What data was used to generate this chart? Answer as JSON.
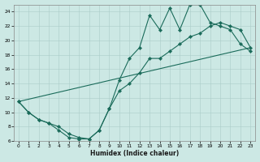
{
  "xlabel": "Humidex (Indice chaleur)",
  "xlim": [
    -0.5,
    23.5
  ],
  "ylim": [
    6,
    25
  ],
  "xticks": [
    0,
    1,
    2,
    3,
    4,
    5,
    6,
    7,
    8,
    9,
    10,
    11,
    12,
    13,
    14,
    15,
    16,
    17,
    18,
    19,
    20,
    21,
    22,
    23
  ],
  "yticks": [
    6,
    8,
    10,
    12,
    14,
    16,
    18,
    20,
    22,
    24
  ],
  "bg_color": "#cce8e4",
  "line_color": "#1a6b5a",
  "grid_color": "#aaccc8",
  "line1_x": [
    0,
    1,
    2,
    3,
    4,
    5,
    6,
    7,
    8,
    9,
    10,
    11,
    12,
    13,
    14,
    15,
    16,
    17,
    18,
    19,
    20,
    21,
    22,
    23
  ],
  "line1_y": [
    11.5,
    10.0,
    9.0,
    8.5,
    7.5,
    6.5,
    6.3,
    6.3,
    7.5,
    10.5,
    14.5,
    17.5,
    19.0,
    23.5,
    21.5,
    24.5,
    21.5,
    25.0,
    25.0,
    22.5,
    22.0,
    21.5,
    19.5,
    18.5
  ],
  "line2_x": [
    0,
    1,
    2,
    3,
    4,
    5,
    6,
    7,
    8,
    9,
    10,
    11,
    12,
    13,
    14,
    15,
    16,
    17,
    18,
    19,
    20,
    21,
    22,
    23
  ],
  "line2_y": [
    11.5,
    10.0,
    9.0,
    8.5,
    8.0,
    7.0,
    6.5,
    6.3,
    7.5,
    10.5,
    13.0,
    14.0,
    15.5,
    17.5,
    17.5,
    18.5,
    19.5,
    20.5,
    21.0,
    22.0,
    22.5,
    22.0,
    21.5,
    19.0
  ],
  "line3_x": [
    0,
    23
  ],
  "line3_y": [
    11.5,
    19.0
  ]
}
